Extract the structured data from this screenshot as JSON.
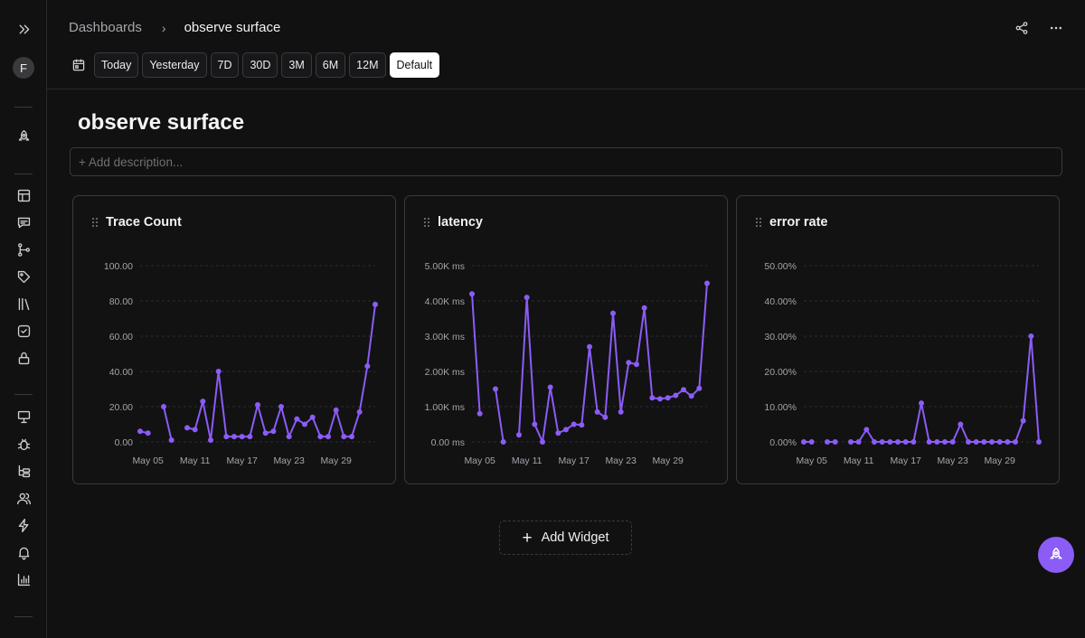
{
  "sidebar": {
    "avatar_initial": "F",
    "icons": [
      "expand-icon",
      "rocket-icon",
      "table-icon",
      "message-icon",
      "workflow-icon",
      "tag-icon",
      "library-icon",
      "check-square-icon",
      "lock-icon",
      "presentation-icon",
      "bug-icon",
      "tree-icon",
      "users-icon",
      "zap-icon",
      "bell-icon",
      "bar-chart-icon"
    ]
  },
  "header": {
    "breadcrumb_root": "Dashboards",
    "breadcrumb_sep": "›",
    "breadcrumb_current": "observe surface",
    "actions": [
      "share-icon",
      "more-icon"
    ]
  },
  "ranges": [
    "Today",
    "Yesterday",
    "7D",
    "30D",
    "3M",
    "6M",
    "12M",
    "Default"
  ],
  "active_range": "Default",
  "page": {
    "title": "observe surface",
    "description_placeholder": "+ Add description..."
  },
  "add_widget_label": "Add Widget",
  "colors": {
    "accent": "#8b5cf6",
    "background": "#111112",
    "border": "#3a3a3e"
  },
  "chart_data": [
    {
      "type": "line",
      "title": "Trace Count",
      "x": [
        "May 04",
        "May 05",
        "May 06",
        "May 07",
        "May 08",
        "May 09",
        "May 10",
        "May 11",
        "May 12",
        "May 13",
        "May 14",
        "May 15",
        "May 16",
        "May 17",
        "May 18",
        "May 19",
        "May 20",
        "May 21",
        "May 22",
        "May 23",
        "May 24",
        "May 25",
        "May 26",
        "May 27",
        "May 28",
        "May 29",
        "May 30",
        "May 31",
        "Jun 01",
        "Jun 02",
        "Jun 03"
      ],
      "series": [
        {
          "values": [
            6,
            5,
            null,
            20,
            1,
            null,
            8,
            7,
            23,
            1,
            40,
            3,
            3,
            3,
            3,
            21,
            5,
            6,
            20,
            3,
            13,
            10,
            14,
            3,
            3,
            18,
            3,
            3,
            17,
            43,
            78
          ]
        }
      ],
      "x_ticks": [
        "May 05",
        "May 11",
        "May 17",
        "May 23",
        "May 29"
      ],
      "y_ticks": [
        "0.00",
        "20.00",
        "40.00",
        "60.00",
        "80.00",
        "100.00"
      ],
      "ylim": [
        0,
        100
      ]
    },
    {
      "type": "line",
      "title": "latency",
      "x": [
        "May 04",
        "May 05",
        "May 06",
        "May 07",
        "May 08",
        "May 09",
        "May 10",
        "May 11",
        "May 12",
        "May 13",
        "May 14",
        "May 15",
        "May 16",
        "May 17",
        "May 18",
        "May 19",
        "May 20",
        "May 21",
        "May 22",
        "May 23",
        "May 24",
        "May 25",
        "May 26",
        "May 27",
        "May 28",
        "May 29",
        "May 30",
        "May 31",
        "Jun 01",
        "Jun 02",
        "Jun 03"
      ],
      "series": [
        {
          "values": [
            4200,
            800,
            null,
            1500,
            0,
            null,
            200,
            4100,
            500,
            0,
            1550,
            250,
            350,
            500,
            480,
            2700,
            850,
            700,
            3650,
            850,
            2250,
            2200,
            3800,
            1250,
            1220,
            1250,
            1320,
            1480,
            1300,
            1520,
            4500
          ]
        }
      ],
      "x_ticks": [
        "May 05",
        "May 11",
        "May 17",
        "May 23",
        "May 29"
      ],
      "y_ticks": [
        "0.00 ms",
        "1.00K ms",
        "2.00K ms",
        "3.00K ms",
        "4.00K ms",
        "5.00K ms"
      ],
      "ylim": [
        0,
        5000
      ]
    },
    {
      "type": "line",
      "title": "error rate",
      "x": [
        "May 04",
        "May 05",
        "May 06",
        "May 07",
        "May 08",
        "May 09",
        "May 10",
        "May 11",
        "May 12",
        "May 13",
        "May 14",
        "May 15",
        "May 16",
        "May 17",
        "May 18",
        "May 19",
        "May 20",
        "May 21",
        "May 22",
        "May 23",
        "May 24",
        "May 25",
        "May 26",
        "May 27",
        "May 28",
        "May 29",
        "May 30",
        "May 31",
        "Jun 01",
        "Jun 02",
        "Jun 03"
      ],
      "series": [
        {
          "values": [
            0,
            0,
            null,
            0,
            0,
            null,
            0,
            0,
            3.5,
            0,
            0,
            0,
            0,
            0,
            0,
            11,
            0,
            0,
            0,
            0,
            5,
            0,
            0,
            0,
            0,
            0,
            0,
            0,
            6,
            30,
            0
          ]
        }
      ],
      "x_ticks": [
        "May 05",
        "May 11",
        "May 17",
        "May 23",
        "May 29"
      ],
      "y_ticks": [
        "0.00%",
        "10.00%",
        "20.00%",
        "30.00%",
        "40.00%",
        "50.00%"
      ],
      "ylim": [
        0,
        50
      ]
    }
  ]
}
